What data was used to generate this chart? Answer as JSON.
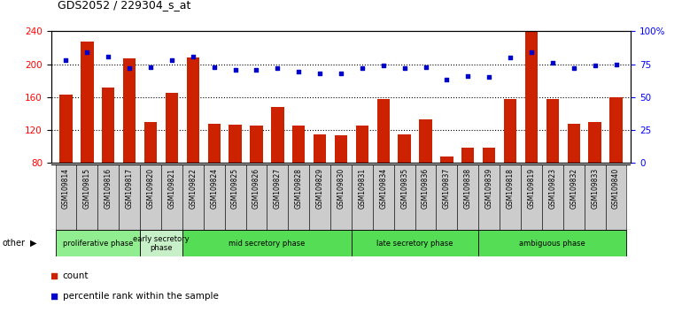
{
  "title": "GDS2052 / 229304_s_at",
  "samples": [
    "GSM109814",
    "GSM109815",
    "GSM109816",
    "GSM109817",
    "GSM109820",
    "GSM109821",
    "GSM109822",
    "GSM109824",
    "GSM109825",
    "GSM109826",
    "GSM109827",
    "GSM109828",
    "GSM109829",
    "GSM109830",
    "GSM109831",
    "GSM109834",
    "GSM109835",
    "GSM109836",
    "GSM109837",
    "GSM109838",
    "GSM109839",
    "GSM109818",
    "GSM109819",
    "GSM109823",
    "GSM109832",
    "GSM109833",
    "GSM109840"
  ],
  "bar_values": [
    163,
    228,
    172,
    207,
    130,
    165,
    208,
    127,
    126,
    125,
    148,
    125,
    115,
    113,
    125,
    158,
    115,
    133,
    88,
    98,
    98,
    158,
    239,
    158,
    127,
    130,
    160
  ],
  "dot_values": [
    78,
    84,
    81,
    72,
    73,
    78,
    81,
    73,
    71,
    71,
    72,
    69,
    68,
    68,
    72,
    74,
    72,
    73,
    63,
    66,
    65,
    80,
    84,
    76,
    72,
    74,
    75
  ],
  "phases": [
    {
      "label": "proliferative phase",
      "start": 0,
      "end": 4,
      "color": "#90EE90"
    },
    {
      "label": "early secretory\nphase",
      "start": 4,
      "end": 6,
      "color": "#c8f0c8"
    },
    {
      "label": "mid secretory phase",
      "start": 6,
      "end": 14,
      "color": "#55dd55"
    },
    {
      "label": "late secretory phase",
      "start": 14,
      "end": 20,
      "color": "#55dd55"
    },
    {
      "label": "ambiguous phase",
      "start": 20,
      "end": 27,
      "color": "#55dd55"
    }
  ],
  "ylim_left": [
    80,
    240
  ],
  "ylim_right": [
    0,
    100
  ],
  "yticks_left": [
    80,
    120,
    160,
    200,
    240
  ],
  "yticks_right": [
    0,
    25,
    50,
    75,
    100
  ],
  "yticklabels_right": [
    "0",
    "25",
    "50",
    "75",
    "100%"
  ],
  "bar_color": "#cc2200",
  "dot_color": "#0000cc",
  "grid_color": "#000000",
  "bg_color": "#ffffff",
  "tick_area_color": "#cccccc"
}
